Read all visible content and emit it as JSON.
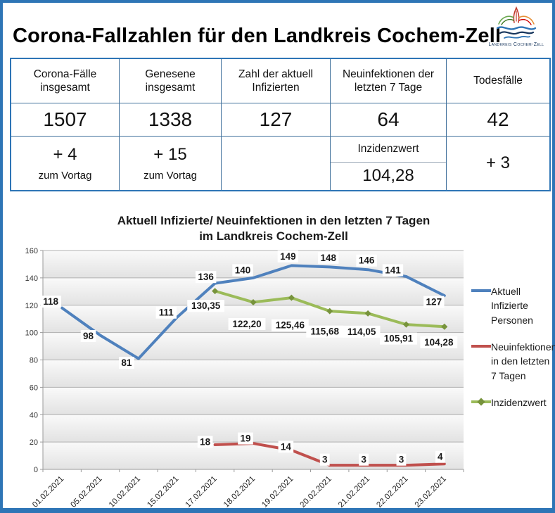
{
  "page": {
    "title": "Corona-Fallzahlen für den Landkreis Cochem-Zell",
    "logo_caption": "Landkreis Cochem-Zell"
  },
  "colors": {
    "frame_blue": "#2e75b6",
    "table_line": "#41719c",
    "series_blue": "#4F81BD",
    "series_red": "#C0504D",
    "series_green": "#9BBB59",
    "marker_green": "#77933C"
  },
  "summary_table": {
    "columns": [
      {
        "header": "Corona-Fälle insgesamt",
        "value": "1507",
        "delta": "+ 4",
        "delta_caption": "zum Vortag"
      },
      {
        "header": "Genesene insgesamt",
        "value": "1338",
        "delta": "+ 15",
        "delta_caption": "zum Vortag"
      },
      {
        "header": "Zahl der aktuell Infizierten",
        "value": "127",
        "delta": "",
        "delta_caption": ""
      },
      {
        "header": "Neuinfektionen der letzten 7 Tage",
        "value": "64",
        "incidence_label": "Inzidenzwert",
        "incidence_value": "104,28"
      },
      {
        "header": "Todesfälle",
        "value": "42",
        "delta": "+ 3",
        "delta_caption": ""
      }
    ]
  },
  "chart_data": {
    "type": "line",
    "title": "Aktuell Infizierte/ Neuinfektionen in den letzten 7 Tagen",
    "title_line2": "im Landkreis Cochem-Zell",
    "categories": [
      "01.02.2021",
      "05.02.2021",
      "10.02.2021",
      "15.02.2021",
      "17.02.2021",
      "18.02.2021",
      "19.02.2021",
      "20.02.2021",
      "21.02.2021",
      "22.02.2021",
      "23.02.2021"
    ],
    "ylim": [
      0,
      160
    ],
    "ytick_step": 20,
    "grid": true,
    "legend_position": "right",
    "series": [
      {
        "name": "Aktuell Infizierte Personen",
        "color": "#4F81BD",
        "marker": "none",
        "start_index": 0,
        "values": [
          118,
          98,
          81,
          111,
          136,
          140,
          149,
          148,
          146,
          141,
          127
        ],
        "labels": [
          "118",
          "98",
          "81",
          "111",
          "136",
          "140",
          "149",
          "148",
          "146",
          "141",
          "127"
        ]
      },
      {
        "name": "Neuinfektionen in den letzten 7 Tagen",
        "color": "#C0504D",
        "marker": "none",
        "start_index": 4,
        "values": [
          18,
          19,
          14,
          3,
          3,
          3,
          4
        ],
        "labels": [
          "18",
          "19",
          "14",
          "3",
          "3",
          "3",
          "4"
        ]
      },
      {
        "name": "Inzidenzwert",
        "color": "#9BBB59",
        "marker": "diamond",
        "marker_color": "#77933C",
        "start_index": 4,
        "values": [
          130.35,
          122.2,
          125.46,
          115.68,
          114.05,
          105.91,
          104.28
        ],
        "labels": [
          "130,35",
          "122,20",
          "125,46",
          "115,68",
          "114,05",
          "105,91",
          "104,28"
        ]
      }
    ]
  }
}
